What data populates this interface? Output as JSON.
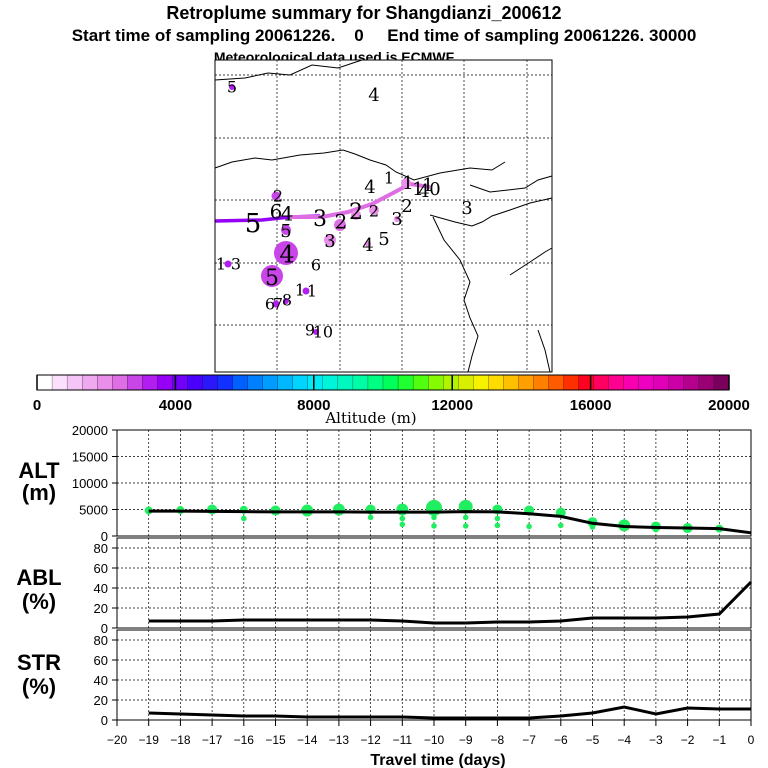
{
  "header": {
    "title": "Retroplume summary for Shangdianzi_200612",
    "sampling": "Start time of sampling 20061226.    0     End time of sampling 20061226. 30000",
    "met": "Meteorological data used is ECMWF"
  },
  "colorbar": {
    "xlabel": "Altitude (m)",
    "min": 0,
    "max": 20000,
    "tick_labels": [
      "0",
      "4000",
      "8000",
      "12000",
      "16000",
      "20000"
    ],
    "colors": [
      "#ffffff",
      "#fbe0fb",
      "#f5c6f5",
      "#efaaef",
      "#e98ee9",
      "#de6ee4",
      "#c845e8",
      "#b21ef0",
      "#9600f6",
      "#7000f8",
      "#4a00fa",
      "#2a18fb",
      "#1230ff",
      "#0060ff",
      "#0080ff",
      "#009cff",
      "#00b8ff",
      "#00d4ff",
      "#00eaf4",
      "#00f4da",
      "#00f8c0",
      "#00fca4",
      "#00fe82",
      "#00ff5a",
      "#20ff30",
      "#52fe10",
      "#86fa00",
      "#b2f400",
      "#d8ef00",
      "#f6f200",
      "#ffdc00",
      "#ffc000",
      "#ffa000",
      "#ff8000",
      "#ff5c00",
      "#ff3000",
      "#ff0020",
      "#ff0060",
      "#ff0090",
      "#f800b0",
      "#ee00c0",
      "#e000b8",
      "#cc00a6",
      "#b4008c",
      "#980074",
      "#7a005e"
    ]
  },
  "map": {
    "labels": [
      {
        "t": "5",
        "x": 232,
        "y": 88,
        "s": 16
      },
      {
        "t": "4",
        "x": 374,
        "y": 96,
        "s": 18
      },
      {
        "t": "4",
        "x": 370,
        "y": 188,
        "s": 18
      },
      {
        "t": "1",
        "x": 389,
        "y": 179,
        "s": 16
      },
      {
        "t": "1",
        "x": 408,
        "y": 184,
        "s": 18
      },
      {
        "t": "1",
        "x": 418,
        "y": 190,
        "s": 18
      },
      {
        "t": "4",
        "x": 424,
        "y": 192,
        "s": 18
      },
      {
        "t": "0",
        "x": 435,
        "y": 190,
        "s": 18
      },
      {
        "t": "1",
        "x": 428,
        "y": 186,
        "s": 18
      },
      {
        "t": "2",
        "x": 407,
        "y": 207,
        "s": 18
      },
      {
        "t": "3",
        "x": 467,
        "y": 209,
        "s": 18
      },
      {
        "t": "2",
        "x": 278,
        "y": 197,
        "s": 16
      },
      {
        "t": "5",
        "x": 253,
        "y": 225,
        "s": 26
      },
      {
        "t": "6",
        "x": 276,
        "y": 213,
        "s": 20
      },
      {
        "t": "4",
        "x": 287,
        "y": 215,
        "s": 20
      },
      {
        "t": "5",
        "x": 286,
        "y": 232,
        "s": 18
      },
      {
        "t": "3",
        "x": 320,
        "y": 220,
        "s": 22
      },
      {
        "t": "2",
        "x": 341,
        "y": 223,
        "s": 20
      },
      {
        "t": "2",
        "x": 356,
        "y": 213,
        "s": 22
      },
      {
        "t": "2",
        "x": 374,
        "y": 212,
        "s": 16
      },
      {
        "t": "3",
        "x": 397,
        "y": 220,
        "s": 18
      },
      {
        "t": "3",
        "x": 330,
        "y": 242,
        "s": 18
      },
      {
        "t": "4",
        "x": 368,
        "y": 246,
        "s": 18
      },
      {
        "t": "5",
        "x": 384,
        "y": 240,
        "s": 18
      },
      {
        "t": "4",
        "x": 287,
        "y": 256,
        "s": 24
      },
      {
        "t": "1",
        "x": 221,
        "y": 265,
        "s": 16
      },
      {
        "t": "3",
        "x": 236,
        "y": 265,
        "s": 16
      },
      {
        "t": "6",
        "x": 316,
        "y": 266,
        "s": 16
      },
      {
        "t": "5",
        "x": 272,
        "y": 279,
        "s": 22
      },
      {
        "t": "1",
        "x": 300,
        "y": 291,
        "s": 16
      },
      {
        "t": "1",
        "x": 312,
        "y": 292,
        "s": 16
      },
      {
        "t": "6",
        "x": 270,
        "y": 305,
        "s": 16
      },
      {
        "t": "7",
        "x": 278,
        "y": 305,
        "s": 16
      },
      {
        "t": "8",
        "x": 287,
        "y": 301,
        "s": 16
      },
      {
        "t": "9",
        "x": 310,
        "y": 331,
        "s": 16
      },
      {
        "t": "1",
        "x": 318,
        "y": 333,
        "s": 16
      },
      {
        "t": "0",
        "x": 328,
        "y": 333,
        "s": 16
      }
    ]
  },
  "panels": {
    "alt": {
      "label_line1": "ALT",
      "label_line2": "(m)",
      "ticks": [
        "0",
        "5000",
        "10000",
        "15000",
        "20000"
      ]
    },
    "abl": {
      "label_line1": "ABL",
      "label_line2": "(%)",
      "ticks": [
        "0",
        "20",
        "40",
        "60",
        "80"
      ]
    },
    "str": {
      "label_line1": "STR",
      "label_line2": "(%)",
      "ticks": [
        "0",
        "20",
        "40",
        "60",
        "80"
      ]
    }
  },
  "chart_data": {
    "type": "line",
    "title": "Retroplume summary for Shangdianzi_200612",
    "xlabel": "Travel time (days)",
    "x": [
      -19,
      -18,
      -17,
      -16,
      -15,
      -14,
      -13,
      -12,
      -11,
      -10,
      -9,
      -8,
      -7,
      -6,
      -5,
      -4,
      -3,
      -2,
      -1,
      0
    ],
    "xlim": [
      -20,
      0
    ],
    "x_tick_labels": [
      "−20",
      "−19",
      "−18",
      "−17",
      "−16",
      "−15",
      "−14",
      "−13",
      "−12",
      "−11",
      "−10",
      "−9",
      "−8",
      "−7",
      "−6",
      "−5",
      "−4",
      "−3",
      "−2",
      "−1",
      "0"
    ],
    "series": [
      {
        "name": "ALT (m)",
        "ylim": [
          0,
          20000
        ],
        "values": [
          4700,
          4700,
          4650,
          4600,
          4550,
          4550,
          4550,
          4500,
          4500,
          4500,
          4600,
          4550,
          4200,
          3700,
          2400,
          1800,
          1600,
          1500,
          1400,
          600
        ]
      },
      {
        "name": "ABL (%)",
        "ylim": [
          0,
          90
        ],
        "values": [
          7,
          7,
          7,
          8,
          8,
          8,
          8,
          8,
          7,
          5,
          5,
          6,
          6,
          7,
          10,
          10,
          10,
          11,
          14,
          46
        ]
      },
      {
        "name": "STR (%)",
        "ylim": [
          0,
          90
        ],
        "values": [
          7,
          6,
          5,
          4,
          4,
          3,
          3,
          3,
          3,
          2,
          2,
          2,
          2,
          4,
          7,
          13,
          6,
          12,
          11,
          11
        ]
      }
    ],
    "alt_dots": {
      "x": [
        -19,
        -18,
        -17,
        -16,
        -15,
        -14,
        -13,
        -12,
        -11,
        -10,
        -9,
        -8,
        -7,
        -6,
        -5,
        -4,
        -3,
        -2,
        -1
      ],
      "main": [
        4800,
        4900,
        5000,
        4950,
        4800,
        4800,
        5000,
        5000,
        5000,
        5300,
        5500,
        5000,
        4800,
        4400,
        2600,
        2000,
        1800,
        1500,
        1400
      ],
      "main_r": [
        4,
        4,
        5,
        4,
        5,
        6,
        6,
        5,
        6,
        8,
        7,
        5,
        5,
        5,
        5,
        6,
        5,
        5,
        4
      ],
      "extra": [
        {
          "x": -16,
          "y": 3300
        },
        {
          "x": -12,
          "y": 3500
        },
        {
          "x": -11,
          "y": 3300
        },
        {
          "x": -11,
          "y": 2200
        },
        {
          "x": -10,
          "y": 3500
        },
        {
          "x": -10,
          "y": 1900
        },
        {
          "x": -9,
          "y": 3500
        },
        {
          "x": -9,
          "y": 1900
        },
        {
          "x": -8,
          "y": 3300
        },
        {
          "x": -8,
          "y": 2000
        },
        {
          "x": -7,
          "y": 1800
        },
        {
          "x": -6,
          "y": 2000
        },
        {
          "x": -5,
          "y": 1700
        },
        {
          "x": -3,
          "y": 1200
        }
      ]
    },
    "colorbar": {
      "type": "colorbar",
      "xlabel": "Altitude (m)",
      "range": [
        0,
        20000
      ]
    }
  }
}
